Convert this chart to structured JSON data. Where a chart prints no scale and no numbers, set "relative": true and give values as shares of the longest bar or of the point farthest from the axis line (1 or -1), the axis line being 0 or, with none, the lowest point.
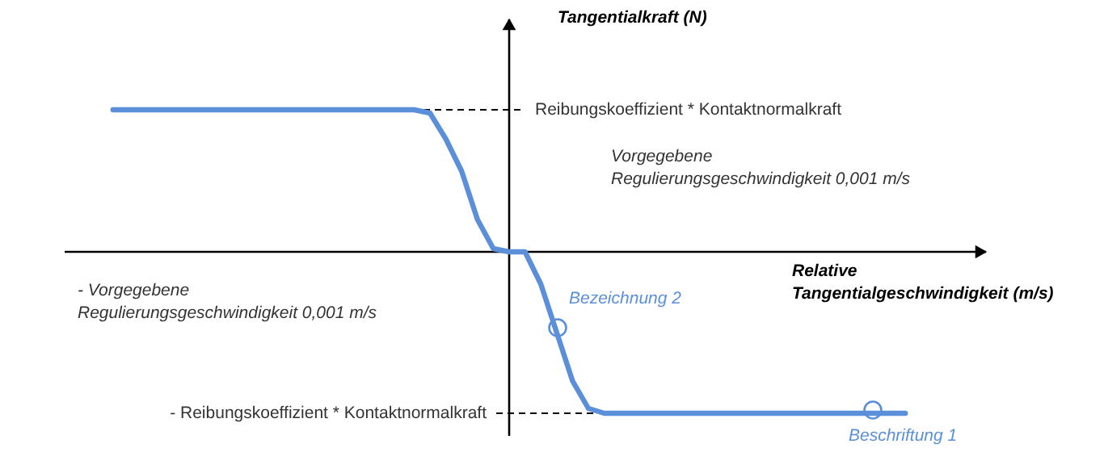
{
  "chart_data": {
    "type": "line",
    "relative": true,
    "xlabel": "Relative Tangentialgeschwindigkeit (m/s)",
    "ylabel": "Tangentialkraft (N)",
    "categories": [
      null,
      null,
      null,
      null,
      null,
      null,
      null,
      null,
      null,
      null,
      null,
      null,
      null,
      null,
      null,
      null,
      null,
      null,
      null,
      null,
      null,
      null,
      null,
      null,
      null,
      null,
      null,
      null,
      null,
      null,
      null,
      null,
      null,
      null,
      null,
      null,
      null,
      null,
      null,
      null,
      null,
      null,
      null,
      null,
      null,
      null,
      null,
      null,
      null,
      null,
      null
    ],
    "series": [
      {
        "color": "#5b8fd9",
        "values": [
          0.88,
          0.88,
          0.88,
          0.88,
          0.88,
          0.88,
          0.88,
          0.88,
          0.88,
          0.88,
          0.88,
          0.88,
          0.88,
          0.88,
          0.88,
          0.88,
          0.88,
          0.88,
          0.88,
          0.88,
          0.86,
          0.7,
          0.5,
          0.2,
          0.02,
          0,
          0,
          -0.2,
          -0.5,
          -0.8,
          -0.97,
          -1,
          -1,
          -1,
          -1,
          -1,
          -1,
          -1,
          -1,
          -1,
          -1,
          -1,
          -1,
          -1,
          -1,
          -1,
          -1,
          -1,
          -1,
          -1,
          -1
        ]
      }
    ],
    "ref_lines": [
      {
        "axis": "y",
        "value": 0.88,
        "label": "Reibungskoeffizient * Kontaktnormalkraft"
      },
      {
        "axis": "y",
        "value": -1,
        "label": "- Reibungskoeffizient * Kontaktnormalkraft"
      }
    ],
    "annotations": [
      "Vorgegebene Regulierungsgeschwindigkeit 0,001 m/s",
      "- Vorgegebene Regulierungsgeschwindigkeit 0,001 m/s",
      "Bezeichnung 2",
      "Beschriftung 1"
    ]
  }
}
